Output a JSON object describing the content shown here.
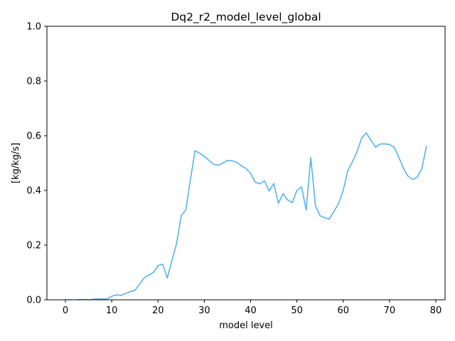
{
  "chart_data": {
    "type": "line",
    "title": "Dq2_r2_model_level_global",
    "xlabel": "model level",
    "ylabel": "[kg/kg/s]",
    "xlim": [
      -4,
      82
    ],
    "ylim": [
      0,
      1.0
    ],
    "xticks": [
      0,
      10,
      20,
      30,
      40,
      50,
      60,
      70,
      80
    ],
    "yticks": [
      0.0,
      0.2,
      0.4,
      0.6,
      0.8,
      1.0
    ],
    "xtick_labels": [
      "0",
      "10",
      "20",
      "30",
      "40",
      "50",
      "60",
      "70",
      "80"
    ],
    "ytick_labels": [
      "0.0",
      "0.2",
      "0.4",
      "0.6",
      "0.8",
      "1.0"
    ],
    "grid": false,
    "series": [
      {
        "color": "#56b4e9",
        "x": [
          0,
          1,
          2,
          3,
          4,
          5,
          6,
          7,
          8,
          9,
          10,
          11,
          12,
          13,
          14,
          15,
          16,
          17,
          18,
          19,
          20,
          21,
          22,
          23,
          24,
          25,
          26,
          27,
          28,
          29,
          30,
          31,
          32,
          33,
          34,
          35,
          36,
          37,
          38,
          39,
          40,
          41,
          42,
          43,
          44,
          45,
          46,
          47,
          48,
          49,
          50,
          51,
          52,
          53,
          54,
          55,
          56,
          57,
          58,
          59,
          60,
          61,
          62,
          63,
          64,
          65,
          66,
          67,
          68,
          69,
          70,
          71,
          72,
          73,
          74,
          75,
          76,
          77,
          78
        ],
        "y": [
          0.0,
          0.0,
          -0.001,
          0.001,
          0.001,
          0.0,
          0.002,
          0.003,
          0.003,
          0.003,
          0.013,
          0.018,
          0.016,
          0.023,
          0.03,
          0.034,
          0.057,
          0.08,
          0.09,
          0.1,
          0.125,
          0.13,
          0.08,
          0.143,
          0.205,
          0.307,
          0.328,
          0.44,
          0.545,
          0.536,
          0.524,
          0.51,
          0.495,
          0.492,
          0.5,
          0.51,
          0.508,
          0.503,
          0.49,
          0.48,
          0.462,
          0.43,
          0.424,
          0.435,
          0.398,
          0.425,
          0.353,
          0.388,
          0.365,
          0.355,
          0.4,
          0.413,
          0.328,
          0.52,
          0.345,
          0.307,
          0.3,
          0.295,
          0.323,
          0.352,
          0.4,
          0.472,
          0.505,
          0.542,
          0.592,
          0.61,
          0.583,
          0.558,
          0.57,
          0.57,
          0.568,
          0.558,
          0.522,
          0.481,
          0.452,
          0.44,
          0.448,
          0.48,
          0.563
        ]
      }
    ]
  }
}
